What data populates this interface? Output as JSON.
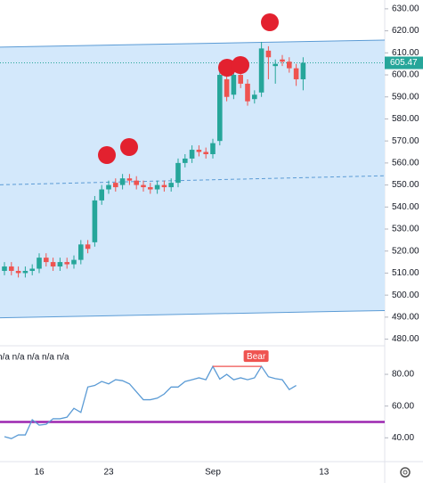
{
  "chart_data": {
    "type": "candlestick",
    "categories": [
      null,
      null,
      null,
      null,
      null,
      "16",
      null,
      null,
      null,
      null,
      null,
      null,
      null,
      null,
      null,
      "23",
      null,
      null,
      null,
      null,
      null,
      null,
      null,
      null,
      null,
      null,
      null,
      null,
      null,
      null,
      "Sep",
      null,
      null,
      null,
      null,
      null,
      null,
      null,
      null,
      null,
      null,
      null,
      null,
      null,
      null,
      null,
      "13"
    ],
    "open": [
      511,
      513,
      511,
      510,
      511,
      512,
      517,
      515,
      513,
      515,
      514,
      516,
      523,
      524,
      543,
      548,
      551,
      550,
      553,
      552,
      550,
      549,
      548,
      550,
      549,
      551,
      560,
      562,
      566,
      565,
      564,
      570,
      598,
      591,
      600,
      596,
      589,
      592,
      611,
      604,
      607,
      606,
      603,
      598,
      null,
      null,
      null
    ],
    "high": [
      515,
      515,
      513,
      513,
      514,
      519,
      519,
      517,
      517,
      517,
      518,
      525,
      525,
      545,
      550,
      552,
      553,
      555,
      555,
      554,
      552,
      551,
      552,
      552,
      553,
      562,
      564,
      568,
      568,
      567,
      571,
      602,
      600,
      602,
      602,
      598,
      593,
      615,
      613,
      607,
      609,
      608,
      605,
      608,
      null,
      null,
      null
    ],
    "low": [
      509,
      509,
      508,
      508,
      509,
      510,
      513,
      511,
      511,
      512,
      512,
      514,
      519,
      522,
      541,
      546,
      547,
      548,
      550,
      548,
      547,
      546,
      546,
      547,
      547,
      549,
      558,
      560,
      563,
      562,
      562,
      568,
      588,
      589,
      594,
      586,
      587,
      590,
      598,
      596,
      604,
      601,
      595,
      593,
      null,
      null,
      null
    ],
    "close": [
      513,
      511,
      510,
      511,
      512,
      517,
      515,
      513,
      515,
      514,
      516,
      523,
      521,
      543,
      548,
      550,
      549,
      553,
      552,
      550,
      549,
      548,
      550,
      549,
      551,
      560,
      562,
      566,
      565,
      564,
      569,
      600,
      590,
      600,
      596,
      588,
      591,
      612,
      608,
      605,
      606,
      603,
      598,
      605.47,
      null,
      null,
      null
    ],
    "up_color": "#26a69a",
    "down_color": "#ef5350",
    "last_price": {
      "value": 605.47,
      "label": "605.47"
    },
    "channel": {
      "upper": [
        612.6,
        615.8
      ],
      "middle": [
        550.1,
        554.2
      ],
      "lower": [
        489.7,
        493.0
      ],
      "color": "#5b9bd5"
    },
    "ylim": [
      477,
      634
    ],
    "yticks": [
      {
        "value": 480,
        "label": "480.00"
      },
      {
        "value": 490,
        "label": "490.00"
      },
      {
        "value": 500,
        "label": "500.00"
      },
      {
        "value": 510,
        "label": "510.00"
      },
      {
        "value": 520,
        "label": "520.00"
      },
      {
        "value": 530,
        "label": "530.00"
      },
      {
        "value": 540,
        "label": "540.00"
      },
      {
        "value": 550,
        "label": "550.00"
      },
      {
        "value": 560,
        "label": "560.00"
      },
      {
        "value": 570,
        "label": "570.00"
      },
      {
        "value": 580,
        "label": "580.00"
      },
      {
        "value": 590,
        "label": "590.00"
      },
      {
        "value": 600,
        "label": "600.00"
      },
      {
        "value": 610,
        "label": "610.00"
      },
      {
        "value": 620,
        "label": "620.00"
      },
      {
        "value": 630,
        "label": "630.00"
      }
    ],
    "rsi": {
      "header": "n/a n/a n/a n/a n/a",
      "color": "#5b9bd5",
      "level": 50,
      "level_color": "#9c27b0",
      "divergence_label": "Bear",
      "values": [
        40.7,
        39.5,
        41.8,
        41.8,
        51.4,
        48,
        48.5,
        52,
        52,
        53,
        58.6,
        56,
        72,
        73,
        75.5,
        74,
        76.6,
        76,
        74,
        69,
        64,
        64,
        65,
        67.6,
        72,
        72,
        75.5,
        76.6,
        77.8,
        76.6,
        85,
        77,
        80,
        76.6,
        77.8,
        76.6,
        77.8,
        85,
        78.5,
        77.3,
        76.6,
        70.4,
        73,
        null,
        null,
        null,
        null
      ],
      "y2lim": [
        25,
        98
      ],
      "y2ticks": [
        {
          "value": 40,
          "label": "40.00"
        },
        {
          "value": 60,
          "label": "60.00"
        },
        {
          "value": 80,
          "label": "80.00"
        }
      ]
    }
  }
}
